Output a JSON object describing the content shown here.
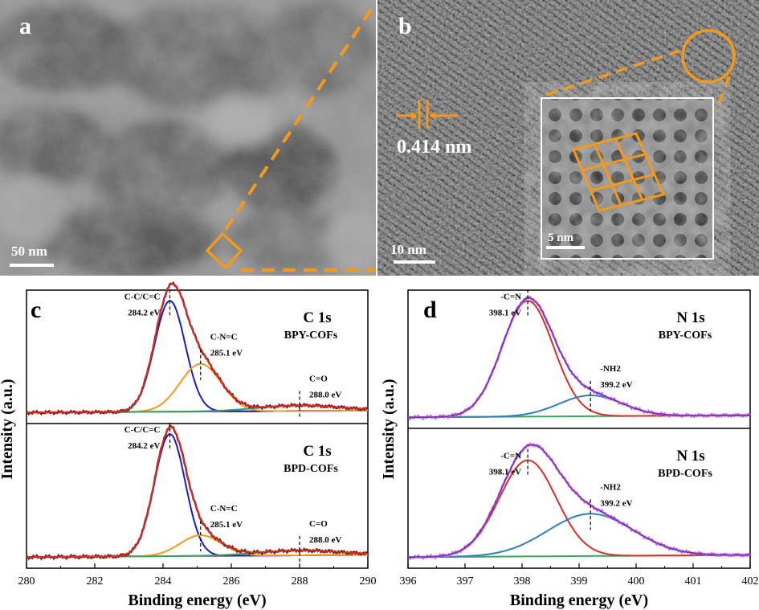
{
  "panel_a": {
    "letter": "a",
    "scalebar": "50 nm"
  },
  "panel_b": {
    "letter": "b",
    "spacing": "0.414 nm",
    "scalebar": "10 nm",
    "inset_scalebar": "5 nm"
  },
  "colors": {
    "orange": "#f39a1c",
    "blue": "#1a1fbf",
    "red": "#d4302a",
    "navy": "#2a2a8c",
    "purple": "#7b2fbe",
    "green": "#3aa55a",
    "pink": "#c46ad8",
    "sky": "#2e7fc0",
    "darkred": "#8b1a1a"
  },
  "chart_data": [
    {
      "type": "line",
      "panel": "c",
      "xlabel": "Binding energy (eV)",
      "ylabel": "Intensity (a.u.)",
      "xlim": [
        280,
        290
      ],
      "xticks": [
        280,
        282,
        284,
        286,
        288,
        290
      ],
      "subplots": [
        {
          "title": "C 1s",
          "sample": "BPY-COFs",
          "peaks": [
            {
              "label": "C-C/C=C",
              "energy": 284.2,
              "energy_label": "284.2 eV",
              "height": 1.0,
              "width": 0.45,
              "color": "#1a1fbf"
            },
            {
              "label": "C-N=C",
              "energy": 285.1,
              "energy_label": "285.1 eV",
              "height": 0.43,
              "width": 0.6,
              "color": "#f39a1c"
            },
            {
              "label": "C=O",
              "energy": 288.0,
              "energy_label": "288.0 eV",
              "height": 0.05,
              "width": 1.2,
              "color": "#3aa55a"
            }
          ]
        },
        {
          "title": "C 1s",
          "sample": "BPD-COFs",
          "peaks": [
            {
              "label": "C-C/C=C",
              "energy": 284.2,
              "energy_label": "284.2 eV",
              "height": 1.0,
              "width": 0.45,
              "color": "#1a1fbf"
            },
            {
              "label": "C-N=C",
              "energy": 285.1,
              "energy_label": "285.1 eV",
              "height": 0.17,
              "width": 0.6,
              "color": "#f39a1c"
            },
            {
              "label": "C=O",
              "energy": 288.0,
              "energy_label": "288.0 eV",
              "height": 0.04,
              "width": 1.2,
              "color": "#3aa55a"
            }
          ]
        }
      ]
    },
    {
      "type": "line",
      "panel": "d",
      "xlabel": "Binding energy (eV)",
      "ylabel": "Intensity (a.u.)",
      "xlim": [
        396,
        402
      ],
      "xticks": [
        396,
        397,
        398,
        399,
        400,
        401,
        402
      ],
      "subplots": [
        {
          "title": "N 1s",
          "sample": "BPY-COFs",
          "peaks": [
            {
              "label": "-C=N",
              "energy": 398.1,
              "energy_label": "398.1 eV",
              "height": 1.0,
              "width": 0.45,
              "color": "#d4302a"
            },
            {
              "label": "-NH2",
              "energy": 399.2,
              "energy_label": "399.2 eV",
              "height": 0.18,
              "width": 0.55,
              "color": "#2e7fc0"
            }
          ]
        },
        {
          "title": "N 1s",
          "sample": "BPD-COFs",
          "peaks": [
            {
              "label": "-C=N",
              "energy": 398.1,
              "energy_label": "398.1 eV",
              "height": 0.82,
              "width": 0.5,
              "color": "#d4302a"
            },
            {
              "label": "-NH2",
              "energy": 399.2,
              "energy_label": "399.2 eV",
              "height": 0.36,
              "width": 0.75,
              "color": "#2e7fc0"
            }
          ]
        }
      ]
    }
  ]
}
